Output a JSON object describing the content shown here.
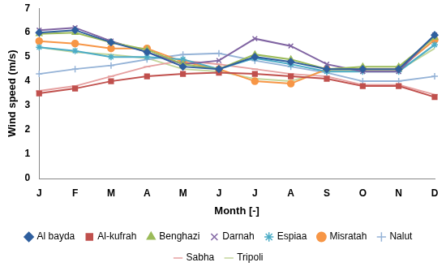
{
  "chart_data": {
    "type": "line",
    "x_label": "Month [-]",
    "y_label": "Wind speed (m/s)",
    "categories": [
      "J",
      "F",
      "M",
      "A",
      "M",
      "J",
      "J",
      "A",
      "S",
      "O",
      "N",
      "D"
    ],
    "ylim": [
      0,
      7
    ],
    "yticks": [
      0,
      1,
      2,
      3,
      4,
      5,
      6,
      7
    ],
    "grid": false,
    "legend": "bottom",
    "series": [
      {
        "name": "Al bayda",
        "color": "#2f5f9e",
        "marker": "diamond",
        "values": [
          6.0,
          6.1,
          5.6,
          5.2,
          4.6,
          4.5,
          5.0,
          4.8,
          4.5,
          4.5,
          4.5,
          5.9
        ]
      },
      {
        "name": "Al-kufrah",
        "color": "#c0504d",
        "marker": "square",
        "values": [
          3.5,
          3.7,
          4.0,
          4.2,
          4.3,
          4.35,
          4.3,
          4.2,
          4.1,
          3.8,
          3.8,
          3.35
        ]
      },
      {
        "name": "Benghazi",
        "color": "#9bbb59",
        "marker": "triangle",
        "values": [
          5.95,
          6.0,
          5.6,
          5.3,
          4.7,
          4.5,
          5.1,
          4.9,
          4.5,
          4.6,
          4.6,
          5.8
        ]
      },
      {
        "name": "Darnah",
        "color": "#8064a2",
        "marker": "x",
        "values": [
          6.1,
          6.2,
          5.65,
          5.2,
          4.7,
          4.85,
          5.75,
          5.45,
          4.7,
          4.4,
          4.4,
          5.9
        ]
      },
      {
        "name": "Espiaa",
        "color": "#4bacc6",
        "marker": "star",
        "values": [
          5.4,
          5.25,
          5.0,
          5.0,
          4.9,
          4.5,
          4.95,
          4.7,
          4.4,
          4.4,
          4.4,
          5.5
        ]
      },
      {
        "name": "Misratah",
        "color": "#f79646",
        "marker": "circle",
        "values": [
          5.65,
          5.55,
          5.35,
          5.35,
          4.8,
          4.5,
          4.0,
          3.9,
          4.5,
          4.5,
          4.5,
          5.7
        ]
      },
      {
        "name": "Nalut",
        "color": "#95b3d7",
        "marker": "plus",
        "values": [
          4.3,
          4.5,
          4.65,
          4.9,
          5.1,
          5.15,
          4.85,
          4.6,
          4.35,
          4.0,
          4.0,
          4.2
        ]
      },
      {
        "name": "Sabha",
        "color": "#e6a0a0",
        "marker": "dash",
        "values": [
          3.6,
          3.8,
          4.2,
          4.6,
          4.85,
          4.7,
          4.5,
          4.3,
          4.2,
          3.85,
          3.85,
          3.45
        ]
      },
      {
        "name": "Tripoli",
        "color": "#c3d69b",
        "marker": "none",
        "values": [
          5.4,
          5.2,
          5.1,
          4.95,
          4.5,
          4.4,
          4.1,
          4.0,
          4.45,
          4.45,
          4.45,
          5.35
        ]
      }
    ]
  }
}
